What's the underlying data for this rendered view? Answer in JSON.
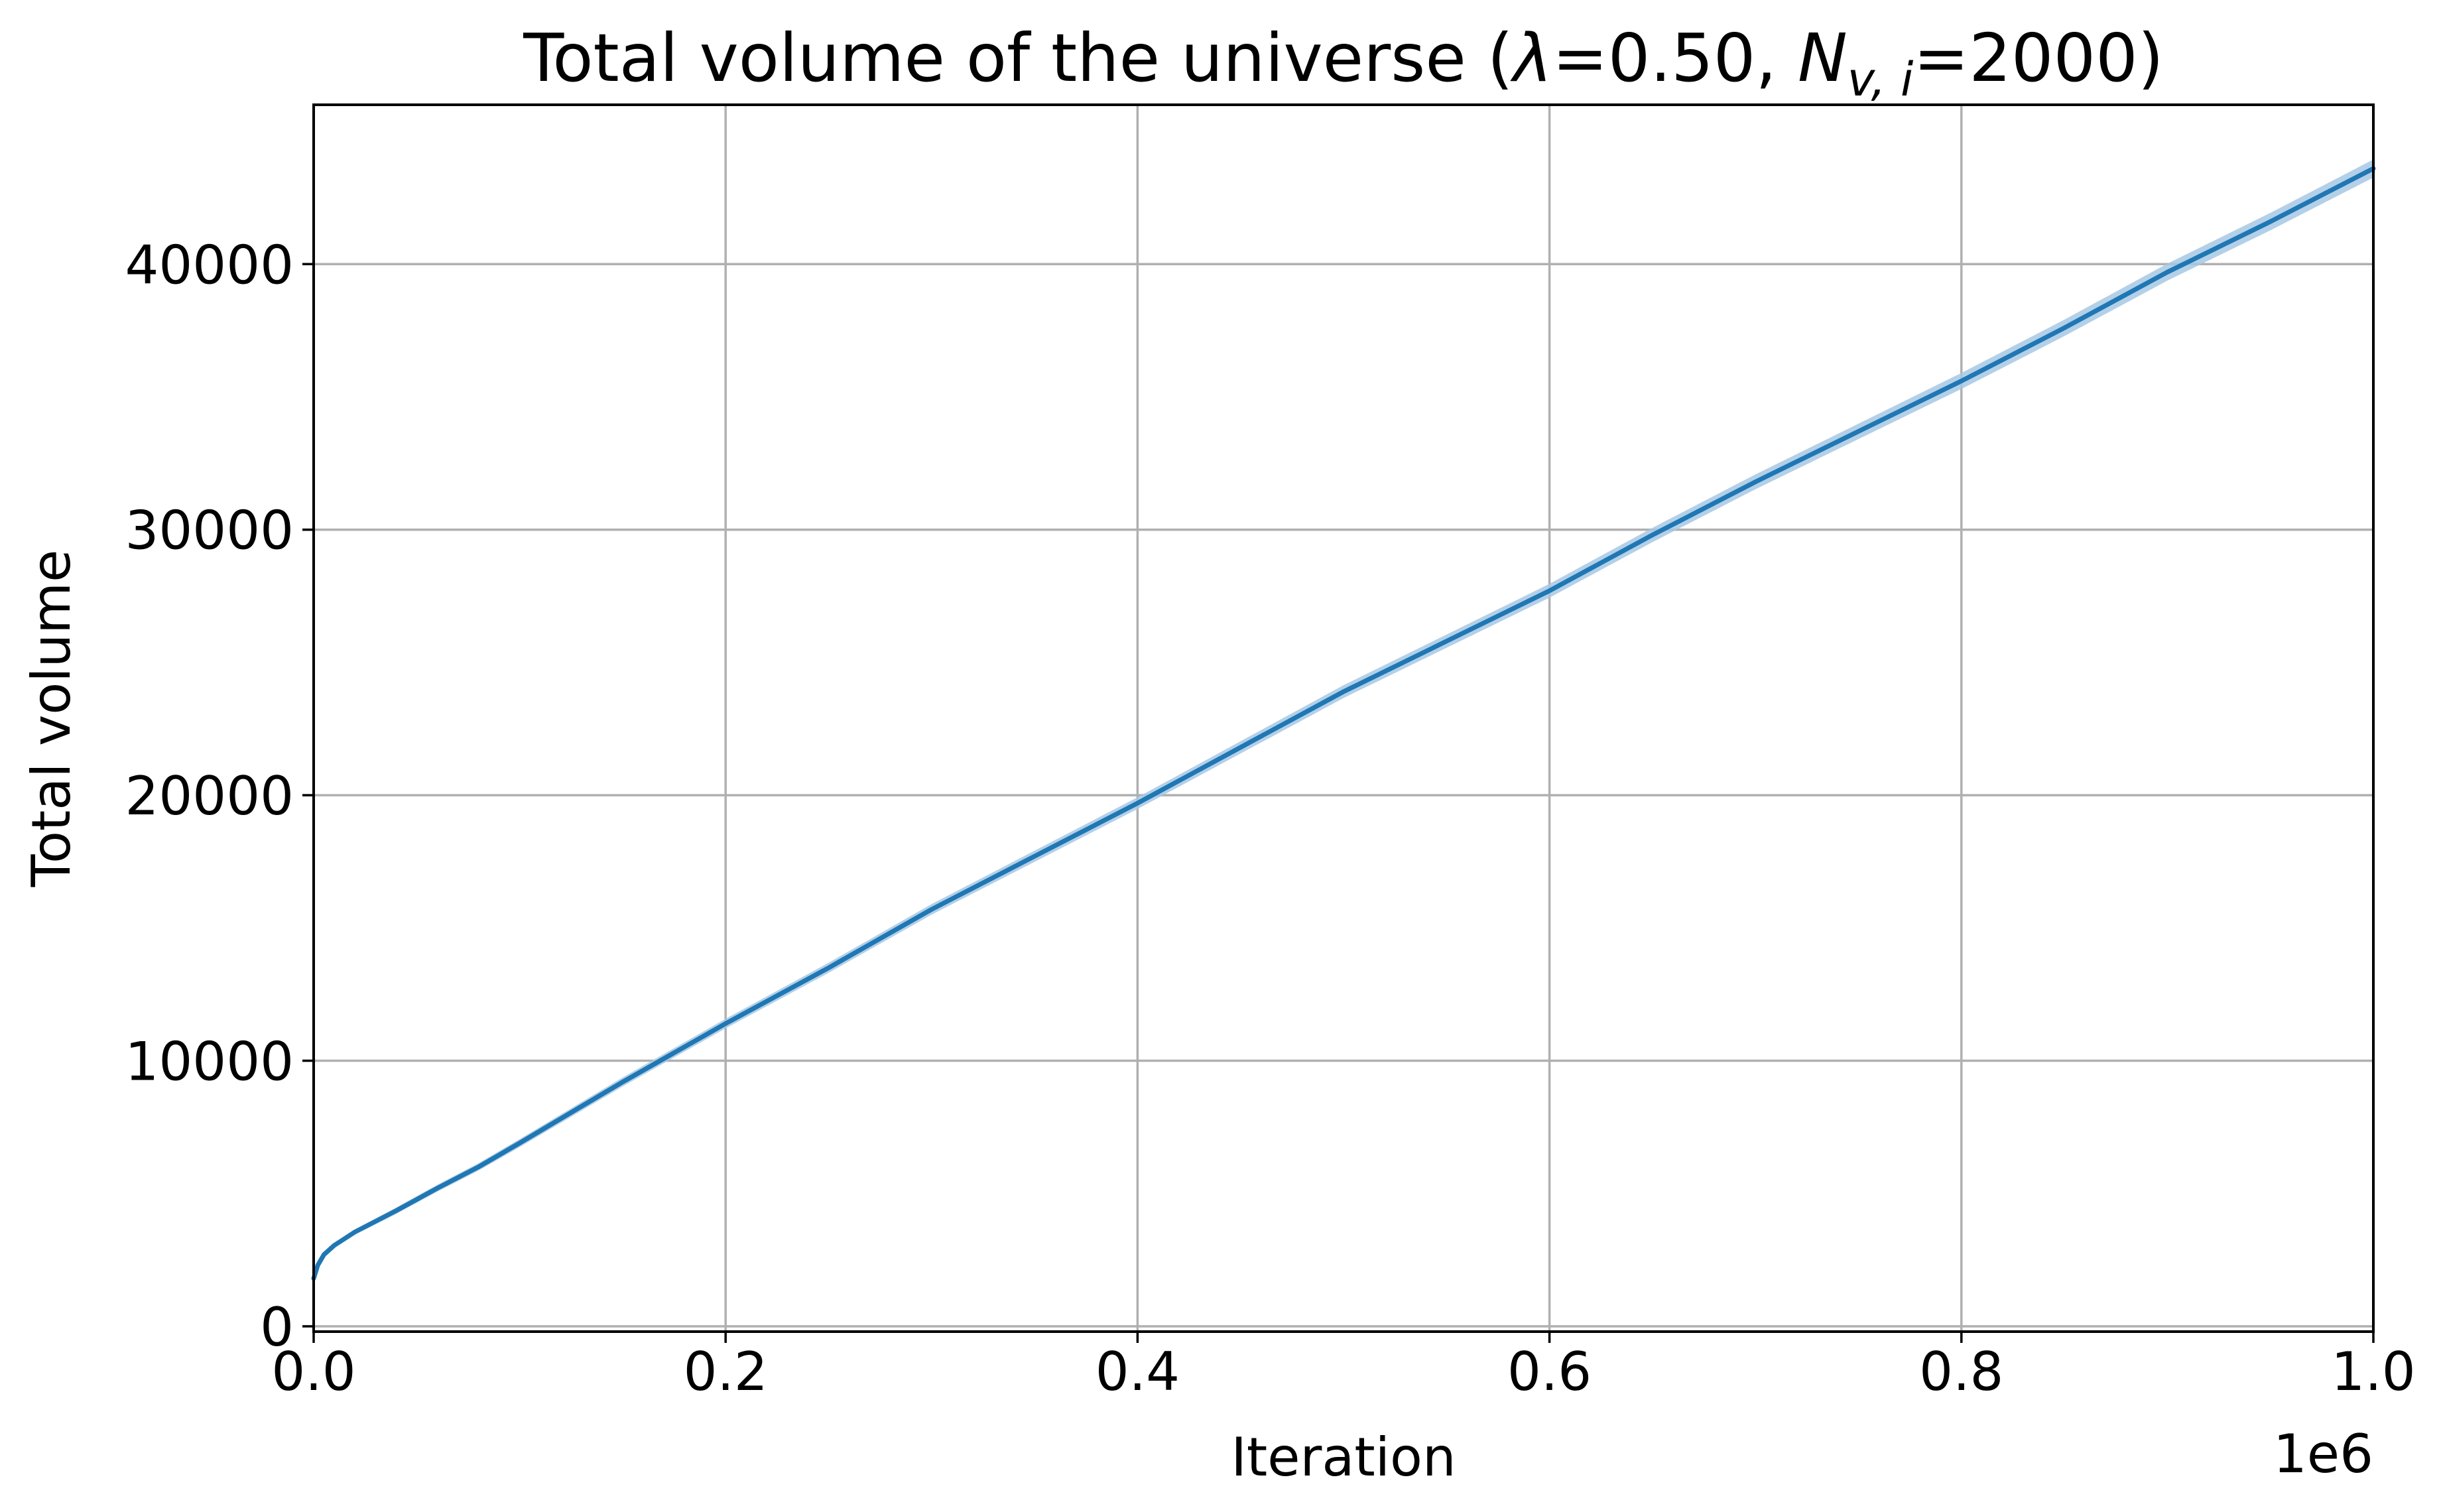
{
  "chart_data": {
    "type": "line",
    "title": {
      "prefix": "Total volume of the universe (",
      "lambda_symbol": "λ",
      "lambda_value": "=0.50, ",
      "n_symbol": "N",
      "n_subscript": "v, i",
      "n_value": "=2000)"
    },
    "xlabel": "Iteration",
    "ylabel": "Total volume",
    "x_offset_label": "1e6",
    "xlim": [
      0,
      1000000
    ],
    "ylim": [
      -200,
      46000
    ],
    "grid": true,
    "x_ticks": [
      {
        "value": 0,
        "label": "0.0"
      },
      {
        "value": 200000,
        "label": "0.2"
      },
      {
        "value": 400000,
        "label": "0.4"
      },
      {
        "value": 600000,
        "label": "0.6"
      },
      {
        "value": 800000,
        "label": "0.8"
      },
      {
        "value": 1000000,
        "label": "1.0"
      }
    ],
    "y_ticks": [
      {
        "value": 0,
        "label": "0"
      },
      {
        "value": 10000,
        "label": "10000"
      },
      {
        "value": 20000,
        "label": "20000"
      },
      {
        "value": 30000,
        "label": "30000"
      },
      {
        "value": 40000,
        "label": "40000"
      }
    ],
    "series": [
      {
        "color": "#1f77b4",
        "band_color": "#a6c8e4",
        "x": [
          0,
          2000,
          5000,
          10000,
          20000,
          30000,
          40000,
          60000,
          80000,
          100000,
          150000,
          200000,
          250000,
          300000,
          350000,
          400000,
          450000,
          500000,
          550000,
          600000,
          650000,
          700000,
          750000,
          800000,
          850000,
          900000,
          950000,
          1000000
        ],
        "y": [
          1800,
          2300,
          2700,
          3050,
          3550,
          3950,
          4350,
          5200,
          6000,
          6900,
          9200,
          11400,
          13500,
          15700,
          17700,
          19700,
          21800,
          23900,
          25800,
          27700,
          29800,
          31800,
          33700,
          35600,
          37600,
          39700,
          41600,
          43600
        ],
        "band_halfwidth": [
          60,
          70,
          80,
          90,
          100,
          110,
          120,
          130,
          140,
          150,
          170,
          180,
          190,
          200,
          210,
          220,
          230,
          240,
          250,
          260,
          270,
          280,
          290,
          300,
          310,
          320,
          330,
          340
        ]
      }
    ]
  }
}
